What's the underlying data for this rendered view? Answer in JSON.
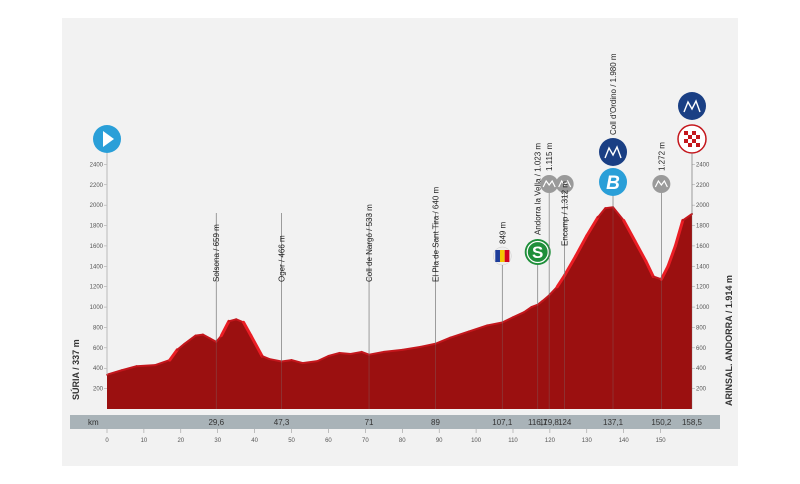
{
  "chart_data": {
    "type": "area",
    "title": "",
    "xlabel": "km",
    "ylabel": "",
    "x_ticks": [
      0,
      10,
      20,
      30,
      40,
      50,
      60,
      70,
      80,
      90,
      100,
      110,
      120,
      130,
      140,
      150
    ],
    "y_ticks": [
      200,
      400,
      600,
      800,
      1000,
      1200,
      1400,
      1600,
      1800,
      2000,
      2200,
      2400
    ],
    "xlim": [
      0,
      158.5
    ],
    "ylim": [
      0,
      2600
    ],
    "grid": false,
    "profile": [
      [
        0,
        337
      ],
      [
        4,
        380
      ],
      [
        8,
        420
      ],
      [
        13,
        430
      ],
      [
        17,
        480
      ],
      [
        19,
        580
      ],
      [
        21,
        640
      ],
      [
        24,
        720
      ],
      [
        26,
        730
      ],
      [
        28,
        690
      ],
      [
        29.6,
        659
      ],
      [
        31,
        720
      ],
      [
        33,
        860
      ],
      [
        35,
        880
      ],
      [
        37,
        850
      ],
      [
        39,
        720
      ],
      [
        42,
        520
      ],
      [
        44,
        490
      ],
      [
        47.3,
        466
      ],
      [
        50,
        480
      ],
      [
        53,
        450
      ],
      [
        57,
        470
      ],
      [
        60,
        520
      ],
      [
        63,
        550
      ],
      [
        66,
        540
      ],
      [
        69,
        560
      ],
      [
        71,
        533
      ],
      [
        75,
        560
      ],
      [
        80,
        580
      ],
      [
        85,
        610
      ],
      [
        89,
        640
      ],
      [
        93,
        700
      ],
      [
        98,
        760
      ],
      [
        103,
        820
      ],
      [
        107.1,
        849
      ],
      [
        110,
        900
      ],
      [
        113,
        950
      ],
      [
        115,
        1000
      ],
      [
        116.7,
        1023
      ],
      [
        118,
        1060
      ],
      [
        119.8,
        1115
      ],
      [
        122,
        1200
      ],
      [
        124,
        1312
      ],
      [
        127,
        1500
      ],
      [
        130,
        1700
      ],
      [
        133,
        1880
      ],
      [
        135,
        1970
      ],
      [
        137.1,
        1980
      ],
      [
        140,
        1850
      ],
      [
        143,
        1650
      ],
      [
        146,
        1450
      ],
      [
        148,
        1300
      ],
      [
        150.2,
        1272
      ],
      [
        152,
        1400
      ],
      [
        154,
        1600
      ],
      [
        156,
        1850
      ],
      [
        158.5,
        1914
      ]
    ],
    "start_label": "SÚRIA / 337 m",
    "finish_label": "ARINSAL. ANDORRA / 1.914 m",
    "waypoints": [
      {
        "km": 29.6,
        "km_label": "29,6",
        "label": "Solsona / 659 m",
        "marker": ""
      },
      {
        "km": 47.3,
        "km_label": "47,3",
        "label": "Oger / 466 m",
        "marker": ""
      },
      {
        "km": 71,
        "km_label": "71",
        "label": "Coll de Nargó / 533 m",
        "marker": ""
      },
      {
        "km": 89,
        "km_label": "89",
        "label": "El Pla de Sant Tira / 640 m",
        "marker": ""
      },
      {
        "km": 107.1,
        "km_label": "107,1",
        "label": "849 m",
        "marker": "flag"
      },
      {
        "km": 116.7,
        "km_label": "116,7",
        "label": "Andorra la Vella / 1.023 m",
        "marker": "sprint"
      },
      {
        "km": 119.8,
        "km_label": "119,8",
        "label": "1.115 m",
        "marker": "climb"
      },
      {
        "km": 124,
        "km_label": "124",
        "label": "Encamp / 1.312 m",
        "marker": "climb"
      },
      {
        "km": 137.1,
        "km_label": "137,1",
        "label": "Coll d'Ordino / 1.980 m",
        "marker": "bonus"
      },
      {
        "km": 150.2,
        "km_label": "150,2",
        "label": "1.272 m",
        "marker": "climb"
      },
      {
        "km": 158.5,
        "km_label": "158,5",
        "label": "",
        "marker": "finish"
      }
    ],
    "sprint_symbol": "S",
    "bonus_symbol": "B"
  },
  "colors": {
    "profile_fill": "#9b1010",
    "profile_edge": "#c4161c",
    "steep_edge": "#ea1d24",
    "km_bar": "#a9b3b8",
    "start_marker": "#2a9fd8",
    "mountain_marker": "#1a3f84",
    "sprint_marker": "#1e8f3a",
    "climb_marker": "#9a9a9a",
    "finish_check": "#c4161c"
  },
  "icons": {
    "start": "play-icon",
    "mountain": "mountain-icon",
    "finish": "checkered-flag-icon",
    "andorra": "andorra-flag-icon"
  }
}
